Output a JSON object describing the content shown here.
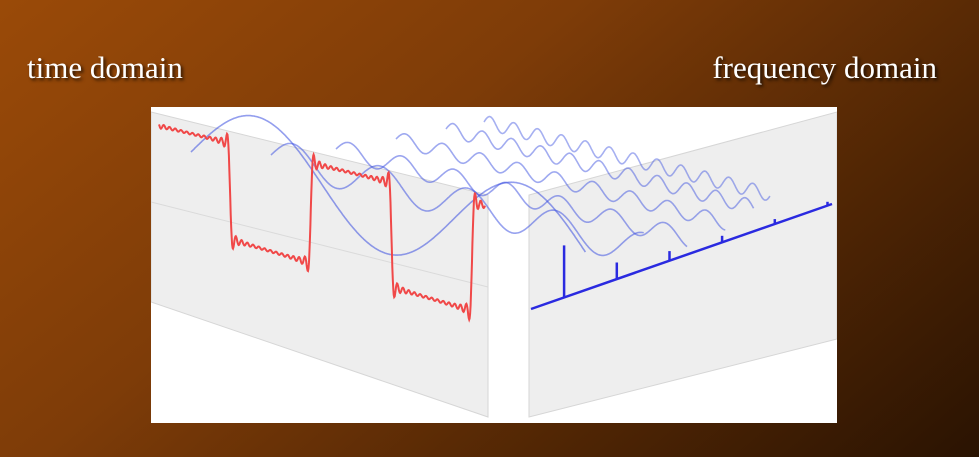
{
  "slide": {
    "left_heading": "time domain",
    "right_heading": "frequency domain"
  },
  "figure": {
    "description_icon": "fourier-decomposition-illustration",
    "colors": {
      "square_wave": "#f04848",
      "sine_components": "#3a4fe0",
      "spectrum": "#2a2ae0",
      "panel": "#eeeeee"
    },
    "harmonics": [
      {
        "order": 1,
        "relative_amplitude": 1.0
      },
      {
        "order": 3,
        "relative_amplitude": 0.333
      },
      {
        "order": 5,
        "relative_amplitude": 0.2
      },
      {
        "order": 7,
        "relative_amplitude": 0.143
      },
      {
        "order": 9,
        "relative_amplitude": 0.111
      },
      {
        "order": 11,
        "relative_amplitude": 0.091
      }
    ]
  }
}
